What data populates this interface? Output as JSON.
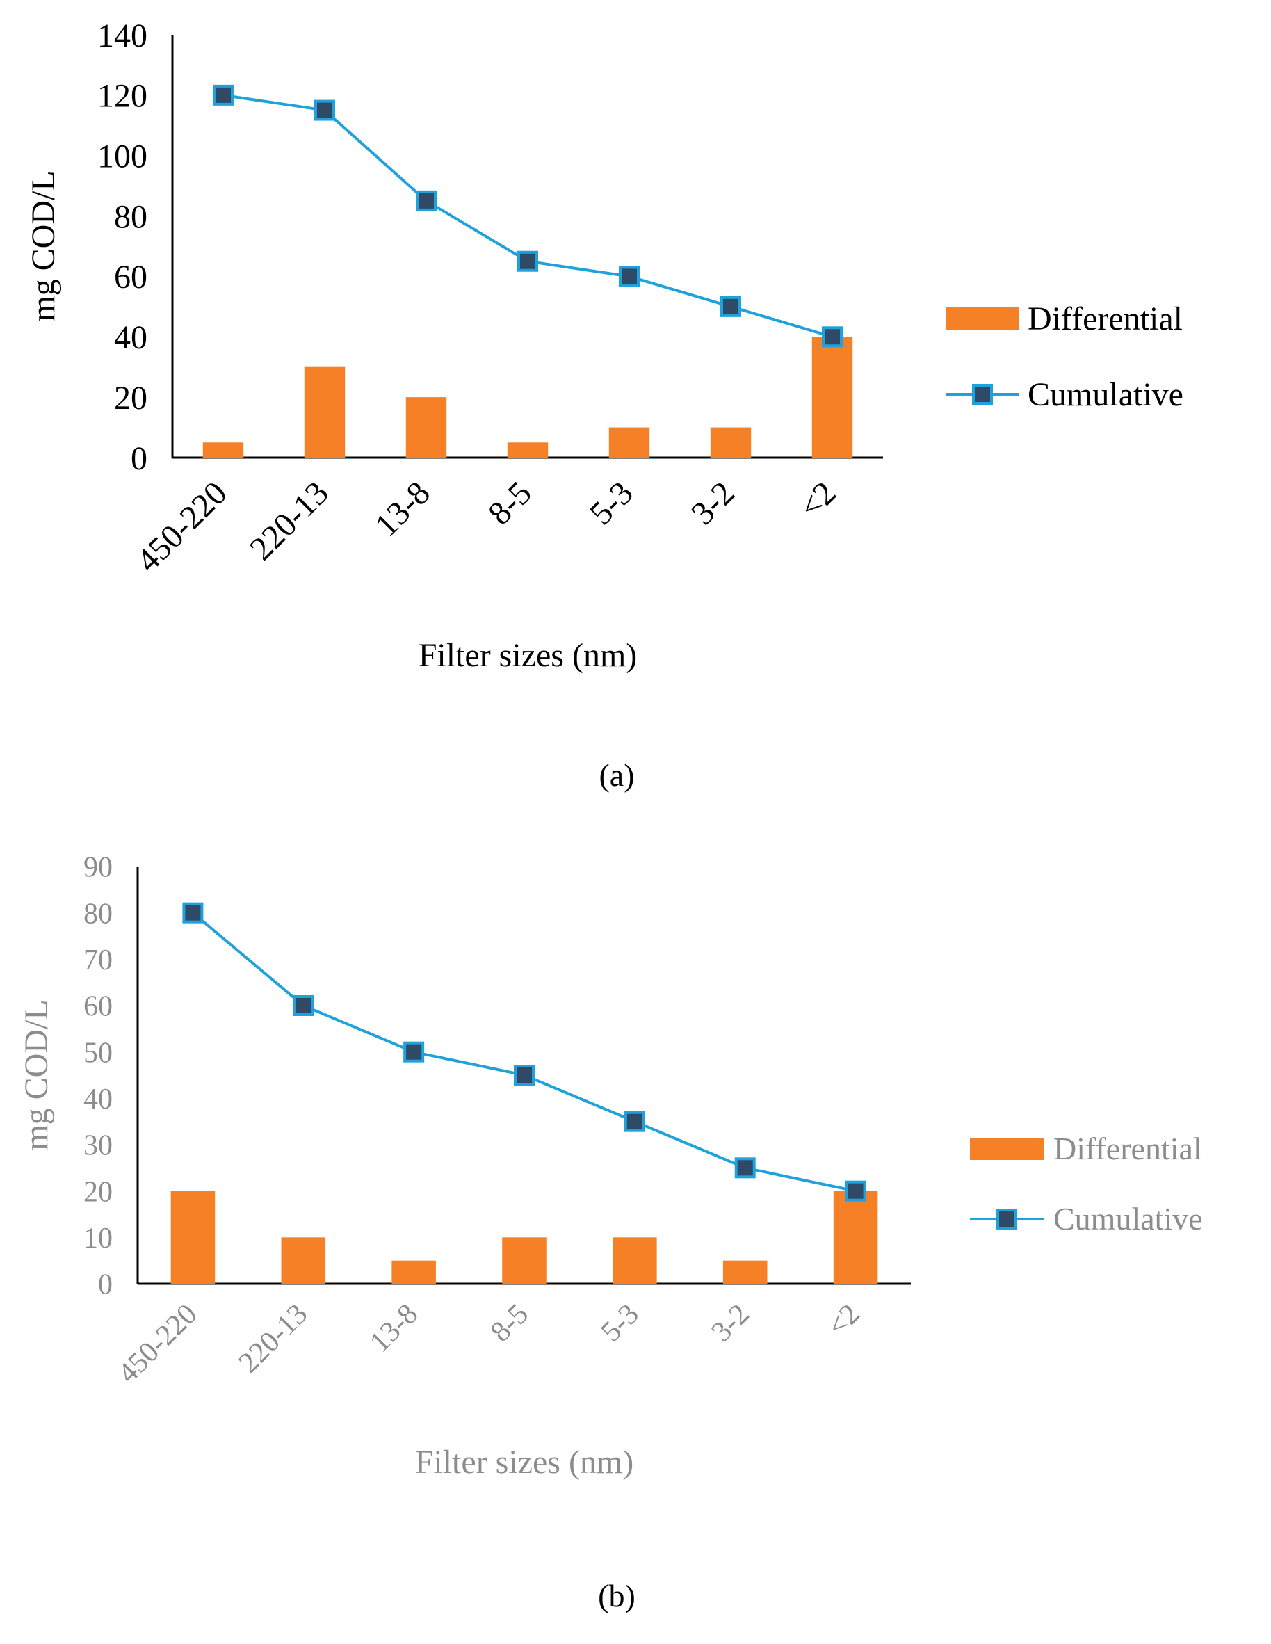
{
  "chart_data": [
    {
      "panel": "(a)",
      "type": "bar",
      "categories": [
        "450-220",
        "220-13",
        "13-8",
        "8-5",
        "5-3",
        "3-2",
        "<2"
      ],
      "series": [
        {
          "name": "Differential",
          "type": "bar",
          "color": "#F58025",
          "values": [
            5,
            30,
            20,
            5,
            10,
            10,
            40
          ]
        },
        {
          "name": "Cumulative",
          "type": "line",
          "color": "#1FA2DC",
          "marker_color": "#2E4A66",
          "values": [
            120,
            115,
            85,
            65,
            60,
            50,
            40
          ]
        }
      ],
      "xlabel": "Filter sizes (nm)",
      "ylabel": "mg COD/L",
      "ylim": [
        0,
        140
      ],
      "yticks": [
        0,
        20,
        40,
        60,
        80,
        100,
        120,
        140
      ],
      "grid": false,
      "legend": "right",
      "text_color": "#000000"
    },
    {
      "panel": "(b)",
      "type": "bar",
      "categories": [
        "450-220",
        "220-13",
        "13-8",
        "8-5",
        "5-3",
        "3-2",
        "<2"
      ],
      "series": [
        {
          "name": "Differential",
          "type": "bar",
          "color": "#F58025",
          "values": [
            20,
            10,
            5,
            10,
            10,
            5,
            20
          ]
        },
        {
          "name": "Cumulative",
          "type": "line",
          "color": "#1FA2DC",
          "marker_color": "#2E4A66",
          "values": [
            80,
            60,
            50,
            45,
            35,
            25,
            20
          ]
        }
      ],
      "xlabel": "Filter sizes (nm)",
      "ylabel": "mg COD/L",
      "ylim": [
        0,
        90
      ],
      "yticks": [
        0,
        10,
        20,
        30,
        40,
        50,
        60,
        70,
        80,
        90
      ],
      "grid": false,
      "legend": "right",
      "text_color": "#8C8C8C"
    }
  ]
}
